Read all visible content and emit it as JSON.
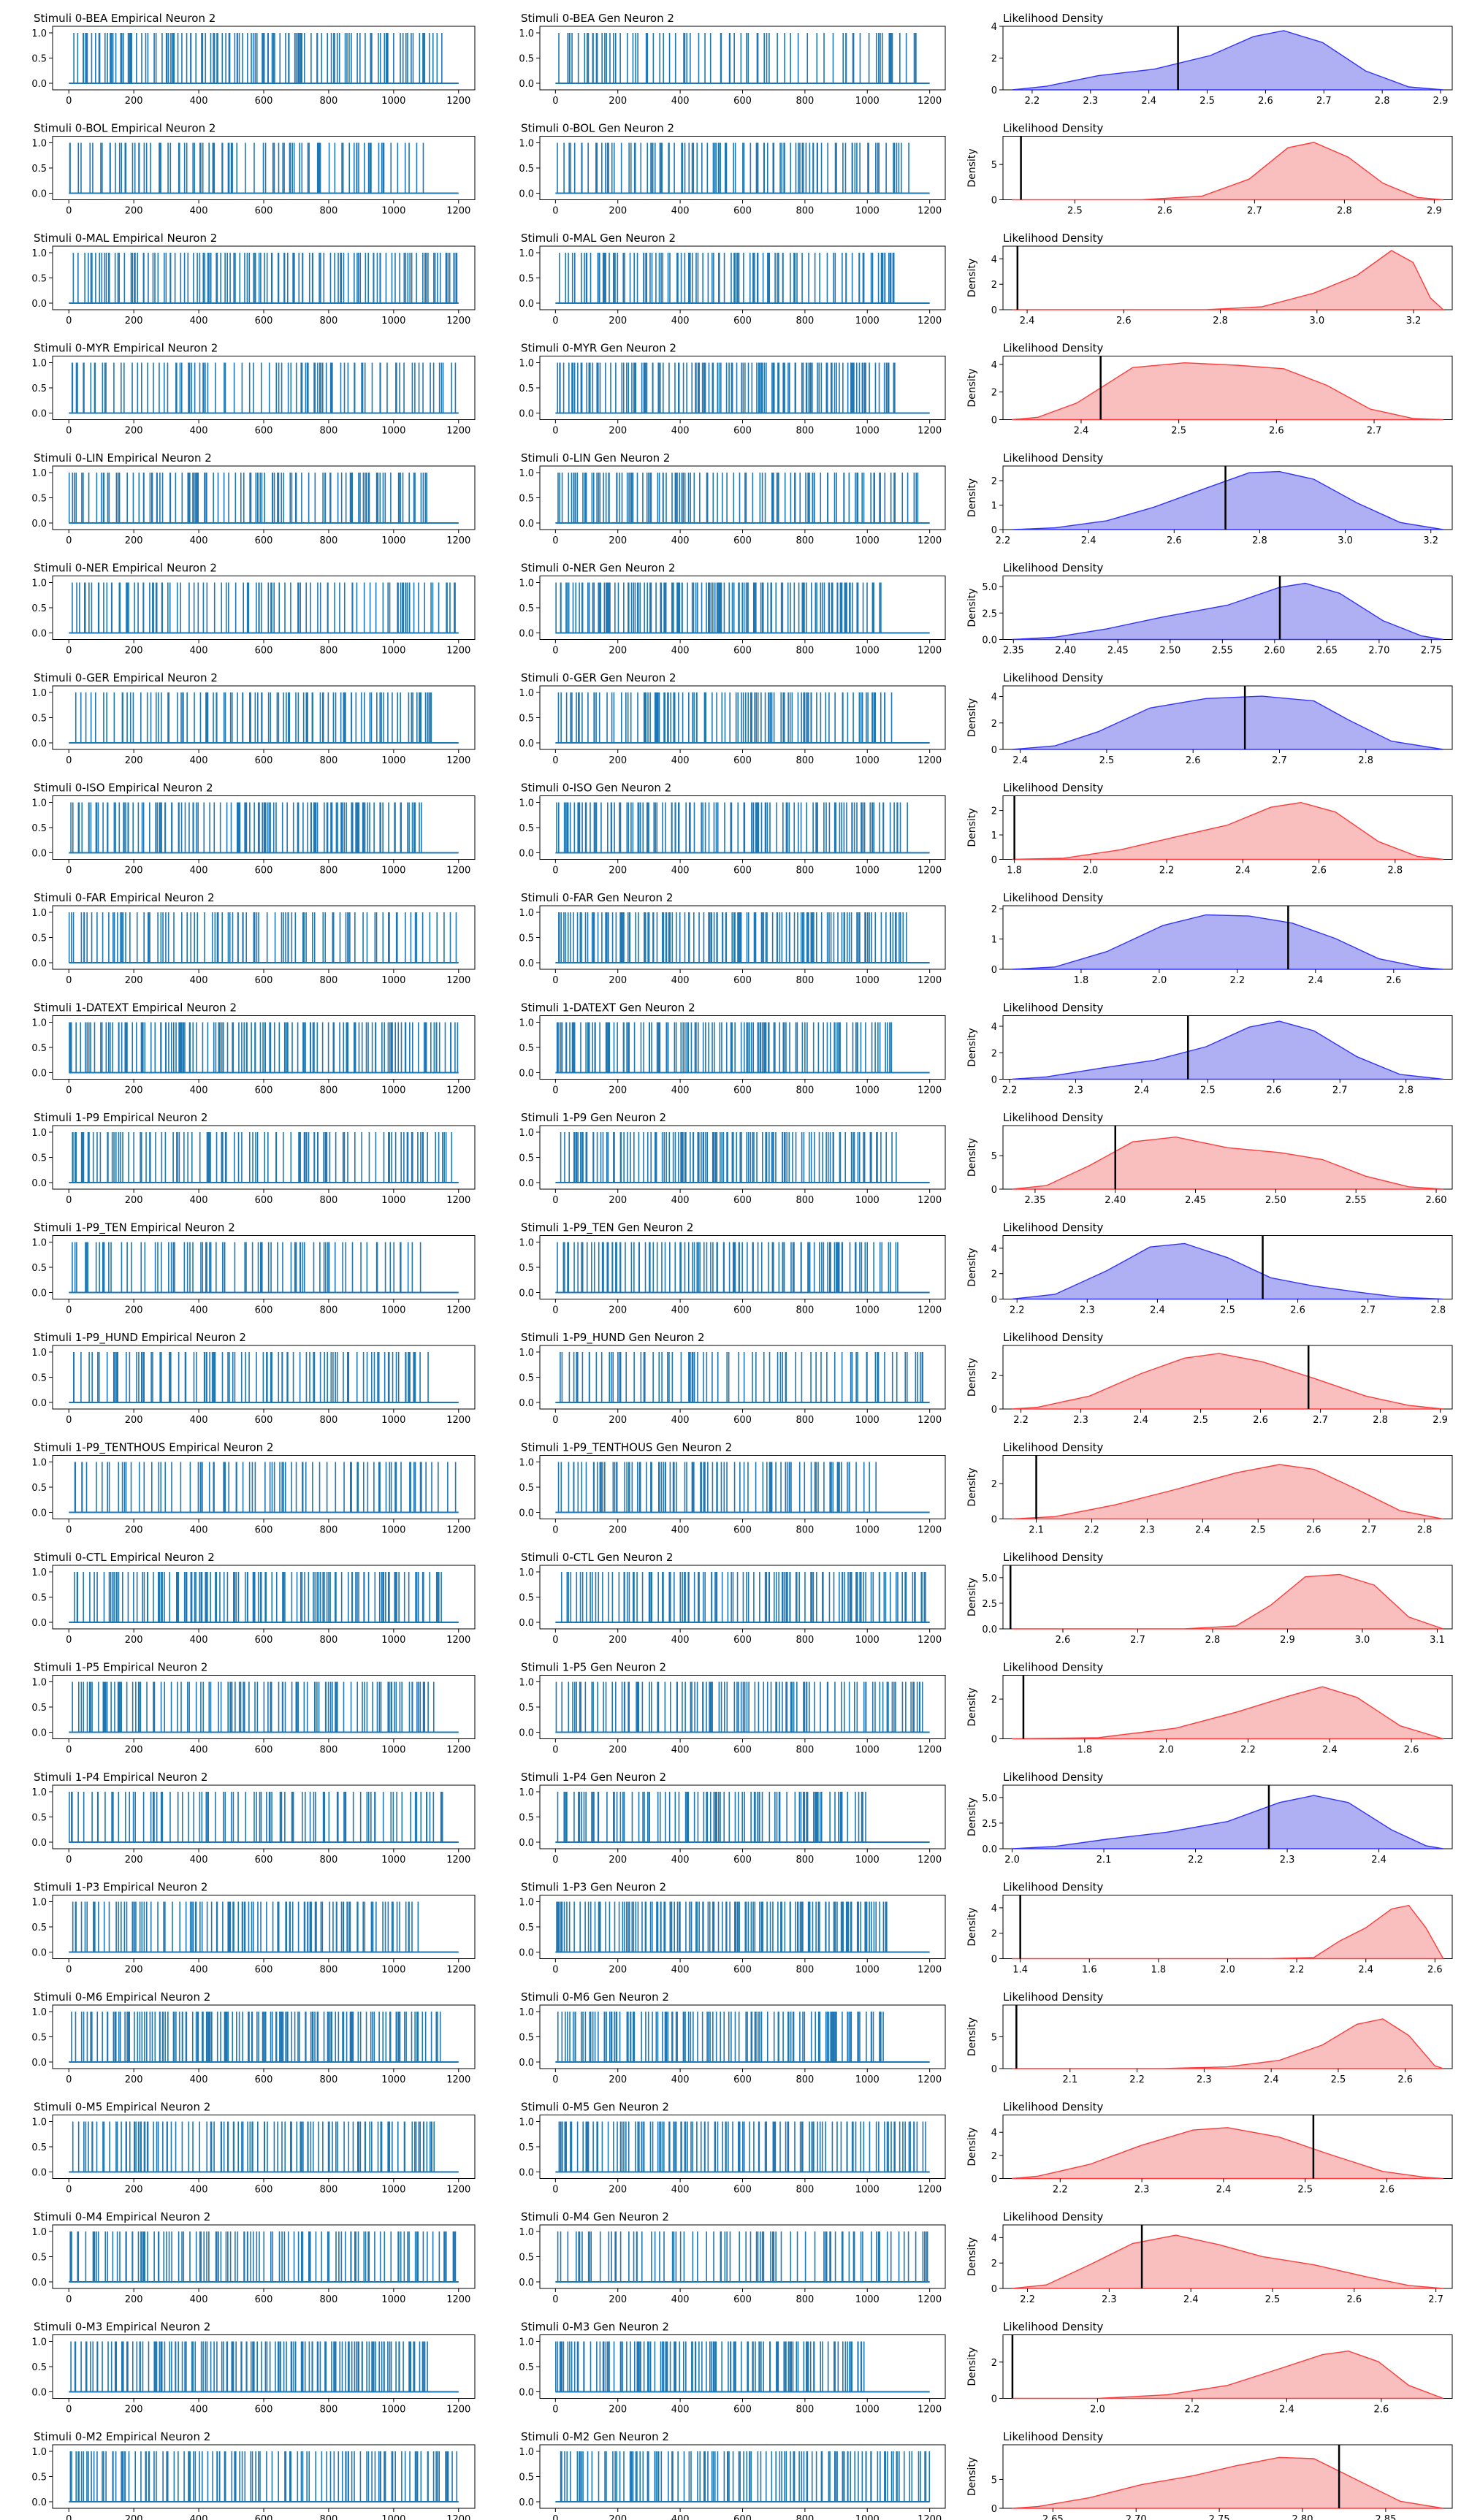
{
  "figure": {
    "rows": [
      {
        "emp_title": "Stimuli 0-BEA Empirical Neuron 2",
        "gen_title": "Stimuli 0-BEA Gen Neuron 2",
        "dens_title": "Likelihood Density",
        "color": "blue",
        "x_ticks": [
          "2.2",
          "2.3",
          "2.4",
          "2.5",
          "2.6",
          "2.7",
          "2.8",
          "2.9"
        ],
        "y_ticks": [
          "0",
          "2",
          "4"
        ],
        "show_ylabel": false
      },
      {
        "emp_title": "Stimuli 0-BOL Empirical Neuron 2",
        "gen_title": "Stimuli 0-BOL Gen Neuron 2",
        "dens_title": "Likelihood Density",
        "color": "red",
        "x_ticks": [
          "2.5",
          "2.6",
          "2.7",
          "2.8",
          "2.9"
        ],
        "y_ticks": [
          "0",
          "5"
        ],
        "show_ylabel": true
      },
      {
        "emp_title": "Stimuli 0-MAL Empirical Neuron 2",
        "gen_title": "Stimuli 0-MAL Gen Neuron 2",
        "dens_title": "Likelihood Density",
        "color": "red",
        "x_ticks": [
          "2.4",
          "2.6",
          "2.8",
          "3.0",
          "3.2"
        ],
        "y_ticks": [
          "0",
          "2",
          "4"
        ],
        "show_ylabel": true
      },
      {
        "emp_title": "Stimuli 0-MYR Empirical Neuron 2",
        "gen_title": "Stimuli 0-MYR Gen Neuron 2",
        "dens_title": "Likelihood Density",
        "color": "red",
        "x_ticks": [
          "2.4",
          "2.5",
          "2.6",
          "2.7"
        ],
        "y_ticks": [
          "0",
          "2",
          "4"
        ],
        "show_ylabel": true
      },
      {
        "emp_title": "Stimuli 0-LIN Empirical Neuron 2",
        "gen_title": "Stimuli 0-LIN Gen Neuron 2",
        "dens_title": "Likelihood Density",
        "color": "blue",
        "x_ticks": [
          "2.2",
          "2.4",
          "2.6",
          "2.8",
          "3.0",
          "3.2"
        ],
        "y_ticks": [
          "0",
          "1",
          "2"
        ],
        "show_ylabel": true
      },
      {
        "emp_title": "Stimuli 0-NER Empirical Neuron 2",
        "gen_title": "Stimuli 0-NER Gen Neuron 2",
        "dens_title": "Likelihood Density",
        "color": "blue",
        "x_ticks": [
          "2.35",
          "2.40",
          "2.45",
          "2.50",
          "2.55",
          "2.60",
          "2.65",
          "2.70",
          "2.75"
        ],
        "y_ticks": [
          "0.0",
          "2.5",
          "5.0"
        ],
        "show_ylabel": true
      },
      {
        "emp_title": "Stimuli 0-GER Empirical Neuron 2",
        "gen_title": "Stimuli 0-GER Gen Neuron 2",
        "dens_title": "Likelihood Density",
        "color": "blue",
        "x_ticks": [
          "2.4",
          "2.5",
          "2.6",
          "2.7",
          "2.8"
        ],
        "y_ticks": [
          "0",
          "2",
          "4"
        ],
        "show_ylabel": true
      },
      {
        "emp_title": "Stimuli 0-ISO Empirical Neuron 2",
        "gen_title": "Stimuli 0-ISO Gen Neuron 2",
        "dens_title": "Likelihood Density",
        "color": "red",
        "x_ticks": [
          "1.8",
          "2.0",
          "2.2",
          "2.4",
          "2.6",
          "2.8"
        ],
        "y_ticks": [
          "0",
          "1",
          "2"
        ],
        "show_ylabel": true
      },
      {
        "emp_title": "Stimuli 0-FAR Empirical Neuron 2",
        "gen_title": "Stimuli 0-FAR Gen Neuron 2",
        "dens_title": "Likelihood Density",
        "color": "blue",
        "x_ticks": [
          "1.8",
          "2.0",
          "2.2",
          "2.4",
          "2.6"
        ],
        "y_ticks": [
          "0",
          "1",
          "2"
        ],
        "show_ylabel": false
      },
      {
        "emp_title": "Stimuli 1-DATEXT Empirical Neuron 2",
        "gen_title": "Stimuli 1-DATEXT Gen Neuron 2",
        "dens_title": "Likelihood Density",
        "color": "blue",
        "x_ticks": [
          "2.2",
          "2.3",
          "2.4",
          "2.5",
          "2.6",
          "2.7",
          "2.8"
        ],
        "y_ticks": [
          "0",
          "2",
          "4"
        ],
        "show_ylabel": true
      },
      {
        "emp_title": "Stimuli 1-P9 Empirical Neuron 2",
        "gen_title": "Stimuli 1-P9 Gen Neuron 2",
        "dens_title": "Likelihood Density",
        "color": "red",
        "x_ticks": [
          "2.35",
          "2.40",
          "2.45",
          "2.50",
          "2.55",
          "2.60"
        ],
        "y_ticks": [
          "0",
          "5"
        ],
        "show_ylabel": true
      },
      {
        "emp_title": "Stimuli 1-P9_TEN Empirical Neuron 2",
        "gen_title": "Stimuli 1-P9_TEN Gen Neuron 2",
        "dens_title": "Likelihood Density",
        "color": "blue",
        "x_ticks": [
          "2.2",
          "2.3",
          "2.4",
          "2.5",
          "2.6",
          "2.7",
          "2.8"
        ],
        "y_ticks": [
          "0",
          "2",
          "4"
        ],
        "show_ylabel": true
      },
      {
        "emp_title": "Stimuli 1-P9_HUND Empirical Neuron 2",
        "gen_title": "Stimuli 1-P9_HUND Gen Neuron 2",
        "dens_title": "Likelihood Density",
        "color": "red",
        "x_ticks": [
          "2.2",
          "2.3",
          "2.4",
          "2.5",
          "2.6",
          "2.7",
          "2.8",
          "2.9"
        ],
        "y_ticks": [
          "0",
          "2"
        ],
        "show_ylabel": true
      },
      {
        "emp_title": "Stimuli 1-P9_TENTHOUS Empirical Neuron 2",
        "gen_title": "Stimuli 1-P9_TENTHOUS Gen Neuron 2",
        "dens_title": "Likelihood Density",
        "color": "red",
        "x_ticks": [
          "2.1",
          "2.2",
          "2.3",
          "2.4",
          "2.5",
          "2.6",
          "2.7",
          "2.8"
        ],
        "y_ticks": [
          "0",
          "2"
        ],
        "show_ylabel": true
      },
      {
        "emp_title": "Stimuli 0-CTL Empirical Neuron 2",
        "gen_title": "Stimuli 0-CTL Gen Neuron 2",
        "dens_title": "Likelihood Density",
        "color": "red",
        "x_ticks": [
          "2.6",
          "2.7",
          "2.8",
          "2.9",
          "3.0",
          "3.1"
        ],
        "y_ticks": [
          "0.0",
          "2.5",
          "5.0"
        ],
        "show_ylabel": true
      },
      {
        "emp_title": "Stimuli 1-P5 Empirical Neuron 2",
        "gen_title": "Stimuli 1-P5 Gen Neuron 2",
        "dens_title": "Likelihood Density",
        "color": "red",
        "x_ticks": [
          "1.8",
          "2.0",
          "2.2",
          "2.4",
          "2.6"
        ],
        "y_ticks": [
          "0",
          "2"
        ],
        "show_ylabel": true
      },
      {
        "emp_title": "Stimuli 1-P4 Empirical Neuron 2",
        "gen_title": "Stimuli 1-P4 Gen Neuron 2",
        "dens_title": "Likelihood Density",
        "color": "blue",
        "x_ticks": [
          "2.0",
          "2.1",
          "2.2",
          "2.3",
          "2.4"
        ],
        "y_ticks": [
          "0.0",
          "2.5",
          "5.0"
        ],
        "show_ylabel": true
      },
      {
        "emp_title": "Stimuli 1-P3 Empirical Neuron 2",
        "gen_title": "Stimuli 1-P3 Gen Neuron 2",
        "dens_title": "Likelihood Density",
        "color": "red",
        "x_ticks": [
          "1.4",
          "1.6",
          "1.8",
          "2.0",
          "2.2",
          "2.4",
          "2.6"
        ],
        "y_ticks": [
          "0",
          "2",
          "4"
        ],
        "show_ylabel": true
      },
      {
        "emp_title": "Stimuli 0-M6 Empirical Neuron 2",
        "gen_title": "Stimuli 0-M6 Gen Neuron 2",
        "dens_title": "Likelihood Density",
        "color": "red",
        "x_ticks": [
          "2.1",
          "2.2",
          "2.3",
          "2.4",
          "2.5",
          "2.6"
        ],
        "y_ticks": [
          "0",
          "5"
        ],
        "show_ylabel": true
      },
      {
        "emp_title": "Stimuli 0-M5 Empirical Neuron 2",
        "gen_title": "Stimuli 0-M5 Gen Neuron 2",
        "dens_title": "Likelihood Density",
        "color": "red",
        "x_ticks": [
          "2.2",
          "2.3",
          "2.4",
          "2.5",
          "2.6"
        ],
        "y_ticks": [
          "0",
          "2",
          "4"
        ],
        "show_ylabel": true
      },
      {
        "emp_title": "Stimuli 0-M4 Empirical Neuron 2",
        "gen_title": "Stimuli 0-M4 Gen Neuron 2",
        "dens_title": "Likelihood Density",
        "color": "red",
        "x_ticks": [
          "2.2",
          "2.3",
          "2.4",
          "2.5",
          "2.6",
          "2.7"
        ],
        "y_ticks": [
          "0",
          "2",
          "4"
        ],
        "show_ylabel": true
      },
      {
        "emp_title": "Stimuli 0-M3 Empirical Neuron 2",
        "gen_title": "Stimuli 0-M3 Gen Neuron 2",
        "dens_title": "Likelihood Density",
        "color": "red",
        "x_ticks": [
          "2.0",
          "2.2",
          "2.4",
          "2.6"
        ],
        "y_ticks": [
          "0",
          "2"
        ],
        "show_ylabel": true
      },
      {
        "emp_title": "Stimuli 0-M2 Empirical Neuron 2",
        "gen_title": "Stimuli 0-M2 Gen Neuron 2",
        "dens_title": "Likelihood Density",
        "color": "red",
        "x_ticks": [
          "2.65",
          "2.70",
          "2.75",
          "2.80",
          "2.85"
        ],
        "y_ticks": [
          "0",
          "5"
        ],
        "show_ylabel": true
      }
    ]
  },
  "chart_data": {
    "type": "raster-and-density-grid",
    "raster_y_ticks": [
      "0.0",
      "0.5",
      "1.0"
    ],
    "raster_x_ticks": [
      "0",
      "200",
      "400",
      "600",
      "800",
      "1000",
      "1200"
    ],
    "raster_xlim": [
      0,
      1200
    ],
    "raster_ylim": [
      0,
      1
    ],
    "density_ylabel": "Density",
    "colors": {
      "blue": "#1f77b4",
      "kde_blue": "#3333ff",
      "kde_blue_fill": "#a6a6f2",
      "kde_red": "#ff3b3b",
      "kde_red_fill": "#f8b8b8",
      "marker": "#000000"
    },
    "density_panels": [
      {
        "stimulus": "0-BEA",
        "color": "blue",
        "xlim": [
          2.15,
          2.92
        ],
        "ymax": 4,
        "observed": 2.45
      },
      {
        "stimulus": "0-BOL",
        "color": "red",
        "xlim": [
          2.42,
          2.92
        ],
        "ymax": 9,
        "observed": 2.44
      },
      {
        "stimulus": "0-MAL",
        "color": "red",
        "xlim": [
          2.35,
          3.28
        ],
        "ymax": 5,
        "observed": 2.38
      },
      {
        "stimulus": "0-MYR",
        "color": "red",
        "xlim": [
          2.32,
          2.78
        ],
        "ymax": 4.6,
        "observed": 2.42
      },
      {
        "stimulus": "0-LIN",
        "color": "blue",
        "xlim": [
          2.2,
          3.25
        ],
        "ymax": 2.6,
        "observed": 2.72
      },
      {
        "stimulus": "0-NER",
        "color": "blue",
        "xlim": [
          2.34,
          2.77
        ],
        "ymax": 6,
        "observed": 2.605
      },
      {
        "stimulus": "0-GER",
        "color": "blue",
        "xlim": [
          2.38,
          2.9
        ],
        "ymax": 4.8,
        "observed": 2.66
      },
      {
        "stimulus": "0-ISO",
        "color": "red",
        "xlim": [
          1.77,
          2.95
        ],
        "ymax": 2.6,
        "observed": 1.8
      },
      {
        "stimulus": "0-FAR",
        "color": "blue",
        "xlim": [
          1.6,
          2.75
        ],
        "ymax": 2.1,
        "observed": 2.33
      },
      {
        "stimulus": "1-DATEXT",
        "color": "blue",
        "xlim": [
          2.19,
          2.87
        ],
        "ymax": 4.8,
        "observed": 2.47
      },
      {
        "stimulus": "1-P9",
        "color": "red",
        "xlim": [
          2.33,
          2.61
        ],
        "ymax": 9.5,
        "observed": 2.4
      },
      {
        "stimulus": "1-P9_TEN",
        "color": "blue",
        "xlim": [
          2.18,
          2.82
        ],
        "ymax": 5,
        "observed": 2.55
      },
      {
        "stimulus": "1-P9_HUND",
        "color": "red",
        "xlim": [
          2.17,
          2.92
        ],
        "ymax": 3.8,
        "observed": 2.68
      },
      {
        "stimulus": "1-P9_TENTHOUS",
        "color": "red",
        "xlim": [
          2.04,
          2.85
        ],
        "ymax": 3.6,
        "observed": 2.1
      },
      {
        "stimulus": "0-CTL",
        "color": "red",
        "xlim": [
          2.52,
          3.12
        ],
        "ymax": 6.2,
        "observed": 2.53
      },
      {
        "stimulus": "1-P5",
        "color": "red",
        "xlim": [
          1.6,
          2.7
        ],
        "ymax": 3.2,
        "observed": 1.65
      },
      {
        "stimulus": "1-P4",
        "color": "blue",
        "xlim": [
          1.99,
          2.48
        ],
        "ymax": 6.2,
        "observed": 2.28
      },
      {
        "stimulus": "1-P3",
        "color": "red",
        "xlim": [
          1.35,
          2.65
        ],
        "ymax": 5,
        "observed": 1.4
      },
      {
        "stimulus": "0-M6",
        "color": "red",
        "xlim": [
          2.0,
          2.67
        ],
        "ymax": 10,
        "observed": 2.02
      },
      {
        "stimulus": "0-M5",
        "color": "red",
        "xlim": [
          2.13,
          2.68
        ],
        "ymax": 5.5,
        "observed": 2.51
      },
      {
        "stimulus": "0-M4",
        "color": "red",
        "xlim": [
          2.17,
          2.72
        ],
        "ymax": 5,
        "observed": 2.34
      },
      {
        "stimulus": "0-M3",
        "color": "red",
        "xlim": [
          1.8,
          2.75
        ],
        "ymax": 3.5,
        "observed": 1.82
      },
      {
        "stimulus": "0-M2",
        "color": "red",
        "xlim": [
          2.62,
          2.89
        ],
        "ymax": 11,
        "observed": 2.822
      }
    ]
  }
}
